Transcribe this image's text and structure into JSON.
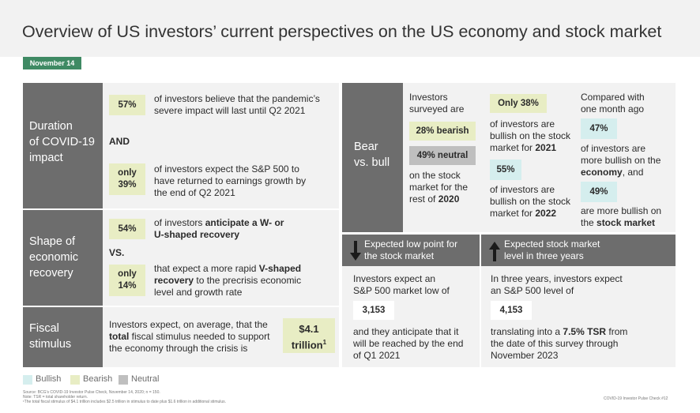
{
  "title": "Overview of US investors’ current perspectives on the US economy and stock market",
  "date": "November 14",
  "covid": {
    "heading_lines": [
      "Duration",
      "of COVID-19",
      "impact"
    ],
    "stat1_value": "57%",
    "stat1_lines": [
      "of investors believe that the pandemic’s",
      "severe impact will last until Q2 2021"
    ],
    "and_label": "AND",
    "stat2_value_lines": [
      "only",
      "39%"
    ],
    "stat2_lines": [
      "of investors expect the S&P 500 to",
      "have returned to earnings growth by",
      "the end of Q2 2021"
    ]
  },
  "shape": {
    "heading_lines": [
      "Shape of",
      "economic",
      "recovery"
    ],
    "stat1_value": "54%",
    "stat1_line1_pre": "of investors ",
    "stat1_line1_bold": "anticipate a W- or",
    "stat1_line2_bold": "U-shaped recovery",
    "vs_label": "VS.",
    "stat2_value_lines": [
      "only",
      "14%"
    ],
    "stat2_line1_pre": "that expect a more rapid ",
    "stat2_line1_bold": "V-shaped",
    "stat2_line2_bold": "recovery",
    "stat2_line2_post": " to the precrisis economic",
    "stat2_line3": "level and growth rate"
  },
  "fiscal": {
    "heading_lines": [
      "Fiscal",
      "stimulus"
    ],
    "line1": "Investors expect, on average, that the",
    "line2_bold": "total",
    "line2_post": " fiscal stimulus needed to support",
    "line3": "the economy through the crisis is",
    "value_line1": "$4.1",
    "value_line2": "trillion",
    "value_sup": "1"
  },
  "bearbull": {
    "heading_lines": [
      "Bear",
      "vs. bull"
    ],
    "surveyed_lines": [
      "Investors",
      "surveyed are"
    ],
    "bearish_label": "28% bearish",
    "neutral_label": "49% neutral",
    "market_lines": [
      "on the stock",
      "market for the"
    ],
    "market_line3_pre": "rest of ",
    "market_line3_bold": "2020",
    "only_label": "Only 38%",
    "bull2021_lines": [
      "of investors are",
      "bullish on the stock"
    ],
    "bull2021_line3_pre": "market for ",
    "bull2021_line3_bold": "2021",
    "val55": "55%",
    "bull2022_lines": [
      "of investors are",
      "bullish on the stock"
    ],
    "bull2022_line3_pre": "market for ",
    "bull2022_line3_bold": "2022",
    "compared_lines": [
      "Compared with",
      "one month ago"
    ],
    "val47": "47%",
    "econ_lines": [
      "of investors are",
      "more bullish on the"
    ],
    "econ_line3_bold": "economy",
    "econ_line3_post": ", and",
    "val49": "49%",
    "stock_line1": "are more bullish on",
    "stock_line2_pre": "the ",
    "stock_line2_bold": "stock market"
  },
  "low_point": {
    "header_lines": [
      "Expected low point for",
      "the stock market"
    ],
    "arrow_icon": "arrow-down-icon",
    "line1": "Investors expect an",
    "line2": "S&P 500 market low of",
    "value": "3,153",
    "after_lines": [
      "and they anticipate that it",
      "will be reached by the end",
      "of Q1 2021"
    ]
  },
  "three_year": {
    "header_lines": [
      "Expected stock market",
      "level in three years"
    ],
    "arrow_icon": "arrow-up-icon",
    "line1": "In three years, investors expect",
    "line2": "an S&P 500 level of",
    "value": "4,153",
    "after_line1_pre": "translating into a ",
    "after_line1_bold": "7.5% TSR",
    "after_line1_post": " from",
    "after_line2": "the date of this survey through",
    "after_line3": "November 2023"
  },
  "legend": [
    {
      "label": "Bullish",
      "color": "#d5eeee"
    },
    {
      "label": "Bearish",
      "color": "#e8edc4"
    },
    {
      "label": "Neutral",
      "color": "#bfbfbf"
    }
  ],
  "footnotes": [
    "Source: BCG’s COVID-19 Investor Pulse Check, November 14, 2020; n = 150.",
    "Note: TSR = total shareholder return.",
    "¹The total fiscal stimulus of $4.1 trillion includes $2.5 trillion in stimulus to date plus $1.6 trillion in additional stimulus."
  ],
  "page_label": "COVID-19 Investor Pulse Check #12",
  "colors": {
    "accent_green": "#3f8a64",
    "panel_dark": "#6d6d6d",
    "panel_light": "#f2f2f2"
  }
}
